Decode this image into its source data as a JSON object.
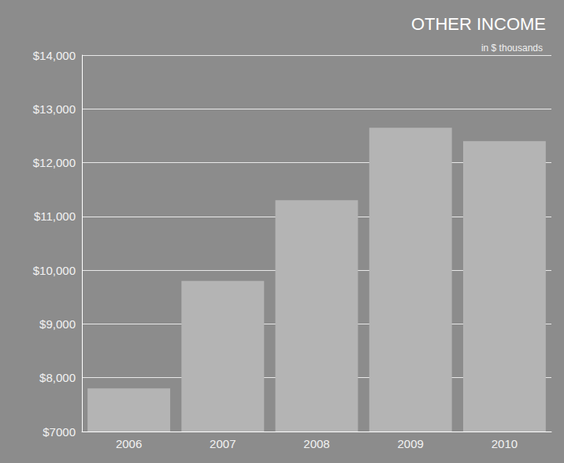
{
  "chart_data": {
    "type": "bar",
    "title": "OTHER INCOME",
    "subtitle": "in $ thousands",
    "categories": [
      "2006",
      "2007",
      "2008",
      "2009",
      "2010"
    ],
    "values": [
      7800,
      9800,
      11300,
      12650,
      12400
    ],
    "color": "#b4b4b4",
    "ylim": [
      7000,
      14000
    ],
    "yticks": [
      {
        "value": 7000,
        "label": "$7000"
      },
      {
        "value": 8000,
        "label": "$8,000"
      },
      {
        "value": 9000,
        "label": "$9,000"
      },
      {
        "value": 10000,
        "label": "$10,000"
      },
      {
        "value": 11000,
        "label": "$11,000"
      },
      {
        "value": 12000,
        "label": "$12,000"
      },
      {
        "value": 13000,
        "label": "$13,000"
      },
      {
        "value": 14000,
        "label": "$14,000"
      }
    ],
    "grid": true
  }
}
